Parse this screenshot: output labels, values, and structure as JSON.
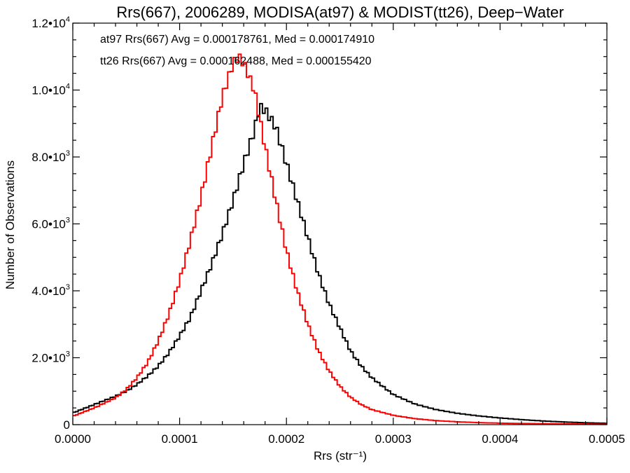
{
  "chart_data": {
    "type": "line",
    "title": "Rrs(667), 2006289, MODISA(at97) & MODIST(tt26), Deep−Water",
    "xlabel": "Rrs (str⁻¹)",
    "ylabel": "Number of Observations",
    "xlim": [
      0,
      0.0005
    ],
    "ylim": [
      0,
      12000
    ],
    "grid": false,
    "x_ticks": [
      {
        "value": 0.0,
        "label": "0.0000"
      },
      {
        "value": 0.0001,
        "label": "0.0001"
      },
      {
        "value": 0.0002,
        "label": "0.0002"
      },
      {
        "value": 0.0003,
        "label": "0.0003"
      },
      {
        "value": 0.0004,
        "label": "0.0004"
      },
      {
        "value": 0.0005,
        "label": "0.0005"
      }
    ],
    "y_ticks": [
      {
        "value": 0,
        "mantissa": "0",
        "exponent": ""
      },
      {
        "value": 2000,
        "mantissa": "2.0•10",
        "exponent": "3"
      },
      {
        "value": 4000,
        "mantissa": "4.0•10",
        "exponent": "3"
      },
      {
        "value": 6000,
        "mantissa": "6.0•10",
        "exponent": "3"
      },
      {
        "value": 8000,
        "mantissa": "8.0•10",
        "exponent": "3"
      },
      {
        "value": 10000,
        "mantissa": "1.0•10",
        "exponent": "4"
      },
      {
        "value": 12000,
        "mantissa": "1.2•10",
        "exponent": "4"
      }
    ],
    "annotations": [
      {
        "text": "at97 Rrs(667) Avg = 0.000178761, Med = 0.000174910",
        "color": "#000000"
      },
      {
        "text": "tt26 Rrs(667) Avg = 0.000162488, Med = 0.000155420",
        "color": "#ff0000"
      }
    ],
    "series": [
      {
        "color": "#000000",
        "x": [
          0.0,
          2e-05,
          4e-05,
          5e-05,
          6e-05,
          7e-05,
          8e-05,
          9e-05,
          0.0001,
          0.00011,
          0.00012,
          0.00013,
          0.00014,
          0.00015,
          0.00016,
          0.00017,
          0.000175,
          0.00018,
          0.00019,
          0.0002,
          0.00021,
          0.00022,
          0.00023,
          0.00024,
          0.00025,
          0.00026,
          0.00027,
          0.00028,
          0.00029,
          0.0003,
          0.00032,
          0.00034,
          0.00036,
          0.00038,
          0.0004,
          0.00042,
          0.00044,
          0.00046,
          0.00048,
          0.0005
        ],
        "y": [
          350,
          600,
          850,
          1000,
          1200,
          1450,
          1750,
          2150,
          2650,
          3200,
          4000,
          4800,
          5700,
          6700,
          7800,
          8800,
          9500,
          9400,
          8900,
          7800,
          6700,
          5600,
          4500,
          3600,
          2900,
          2200,
          1750,
          1400,
          1150,
          900,
          620,
          450,
          340,
          260,
          200,
          150,
          110,
          80,
          55,
          40
        ]
      },
      {
        "color": "#ff0000",
        "x": [
          0.0,
          2e-05,
          4e-05,
          5e-05,
          6e-05,
          7e-05,
          8e-05,
          9e-05,
          0.0001,
          0.00011,
          0.00012,
          0.00013,
          0.00014,
          0.00015,
          0.000155,
          0.00016,
          0.00017,
          0.00018,
          0.00019,
          0.0002,
          0.00021,
          0.00022,
          0.00023,
          0.00024,
          0.00025,
          0.00026,
          0.00027,
          0.00028,
          0.0003,
          0.00032,
          0.00034,
          0.00036,
          0.00038,
          0.0004,
          0.00042,
          0.00044,
          0.00046,
          0.00048,
          0.0005
        ],
        "y": [
          250,
          500,
          800,
          1050,
          1400,
          1850,
          2500,
          3300,
          4300,
          5500,
          6800,
          8300,
          9800,
          10800,
          11000,
          10800,
          10000,
          8300,
          6700,
          5200,
          4000,
          3000,
          2200,
          1600,
          1150,
          820,
          600,
          450,
          280,
          180,
          120,
          85,
          60,
          45,
          35,
          28,
          22,
          18,
          12
        ]
      }
    ]
  }
}
